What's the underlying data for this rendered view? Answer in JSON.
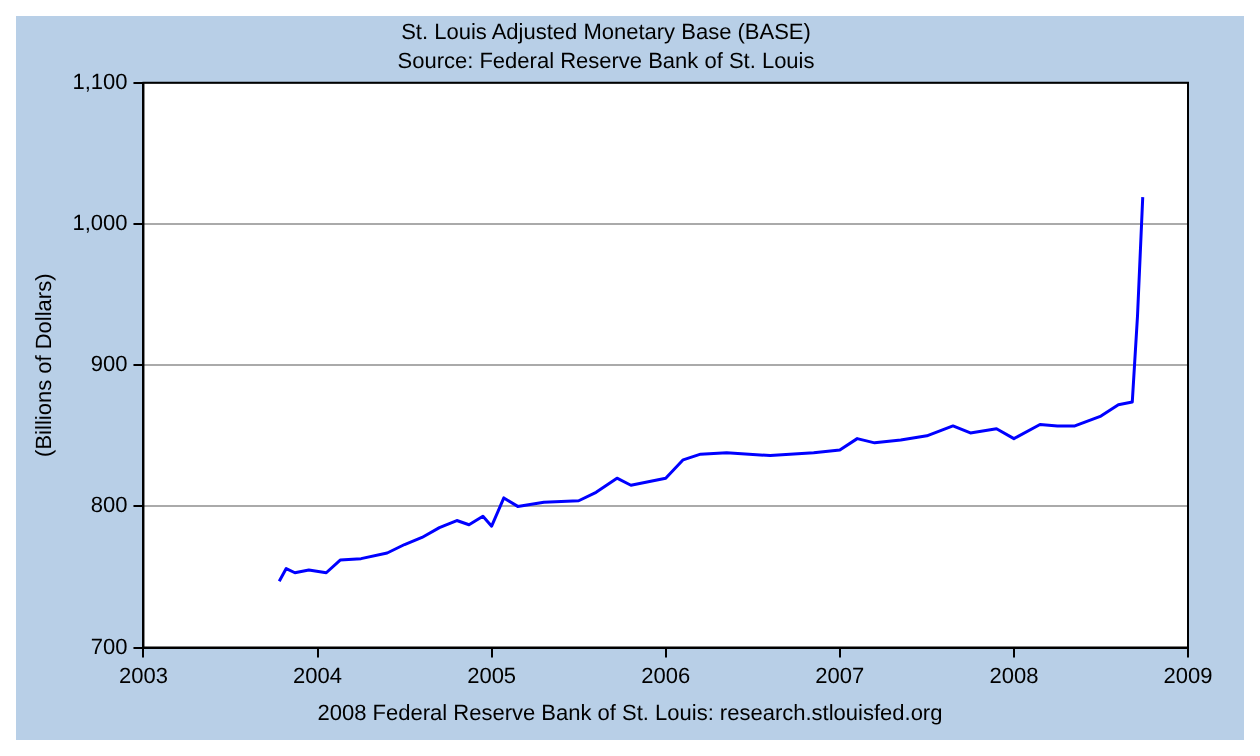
{
  "chart_data": {
    "type": "line",
    "title": "St. Louis Adjusted Monetary Base (BASE)",
    "subtitle": "Source: Federal Reserve Bank of St. Louis",
    "ylabel": "(Billions of Dollars)",
    "annotations": [
      "2008 Federal Reserve Bank of St. Louis: research.stlouisfed.org"
    ],
    "x": [
      2003.78,
      2003.82,
      2003.87,
      2003.95,
      2004.05,
      2004.13,
      2004.25,
      2004.4,
      2004.5,
      2004.6,
      2004.7,
      2004.8,
      2004.87,
      2004.95,
      2005.0,
      2005.07,
      2005.15,
      2005.3,
      2005.5,
      2005.6,
      2005.72,
      2005.8,
      2006.0,
      2006.1,
      2006.2,
      2006.35,
      2006.6,
      2006.85,
      2007.0,
      2007.1,
      2007.2,
      2007.35,
      2007.5,
      2007.65,
      2007.75,
      2007.9,
      2008.0,
      2008.15,
      2008.25,
      2008.35,
      2008.5,
      2008.6,
      2008.68,
      2008.71,
      2008.74
    ],
    "series": [
      {
        "color": "#0000ff",
        "values": [
          747,
          756,
          753,
          755,
          753,
          762,
          763,
          767,
          773,
          778,
          785,
          790,
          787,
          793,
          786,
          806,
          800,
          803,
          804,
          810,
          820,
          815,
          820,
          833,
          837,
          838,
          836,
          838,
          840,
          848,
          845,
          847,
          850,
          857,
          852,
          855,
          848,
          858,
          857,
          857,
          864,
          872,
          874,
          935,
          1019
        ]
      }
    ],
    "xlim": [
      2003,
      2009
    ],
    "xticks": [
      2003,
      2004,
      2005,
      2006,
      2007,
      2008,
      2009
    ],
    "ylim": [
      700,
      1100
    ],
    "yticks": [
      700,
      800,
      900,
      {
        "value": 1000,
        "label": "1,000"
      },
      {
        "value": 1100,
        "label": "1,100"
      }
    ],
    "grid": "y",
    "legend": false,
    "marker": "none",
    "line_style": "solid"
  }
}
